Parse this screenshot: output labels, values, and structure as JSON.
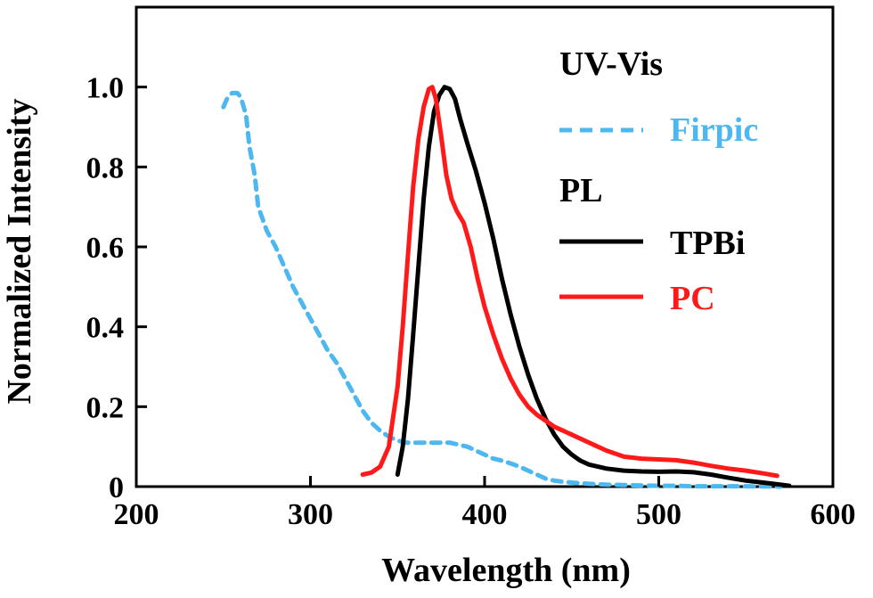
{
  "chart_data": {
    "type": "line",
    "xlabel": "Wavelength (nm)",
    "ylabel": "Normalized Intensity",
    "xlim": [
      200,
      600
    ],
    "ylim": [
      0,
      1.2
    ],
    "x_ticks": [
      200,
      300,
      400,
      500,
      600
    ],
    "y_ticks": [
      0,
      0.2,
      0.4,
      0.6,
      0.8,
      1.0
    ],
    "y_tick_labels": [
      "0",
      "0.2",
      "0.4",
      "0.6",
      "0.8",
      "1.0"
    ],
    "grid": false,
    "legend": {
      "placement": "top-right",
      "groups": [
        {
          "title": "UV-Vis",
          "entries": [
            "Firpic"
          ]
        },
        {
          "title": "PL",
          "entries": [
            "TPBi",
            "PC"
          ]
        }
      ]
    },
    "series": [
      {
        "name": "Firpic",
        "group": "UV-Vis",
        "color": "#4DB8F0",
        "style": "dashed",
        "x": [
          250,
          252,
          255,
          258,
          260,
          263,
          265,
          268,
          270,
          275,
          280,
          285,
          290,
          295,
          300,
          305,
          310,
          315,
          320,
          325,
          330,
          335,
          340,
          345,
          350,
          355,
          360,
          365,
          370,
          375,
          380,
          385,
          390,
          395,
          400,
          405,
          410,
          415,
          420,
          425,
          430,
          435,
          440,
          445,
          450,
          460,
          470,
          480,
          490,
          500,
          510,
          520,
          530,
          540,
          550,
          560,
          570
        ],
        "y": [
          0.95,
          0.97,
          0.985,
          0.985,
          0.975,
          0.93,
          0.85,
          0.78,
          0.7,
          0.64,
          0.6,
          0.55,
          0.5,
          0.46,
          0.42,
          0.38,
          0.34,
          0.31,
          0.27,
          0.23,
          0.19,
          0.16,
          0.14,
          0.125,
          0.115,
          0.11,
          0.11,
          0.11,
          0.11,
          0.11,
          0.11,
          0.105,
          0.1,
          0.09,
          0.08,
          0.07,
          0.065,
          0.058,
          0.05,
          0.04,
          0.03,
          0.02,
          0.015,
          0.012,
          0.01,
          0.007,
          0.005,
          0.004,
          0.003,
          0.002,
          0.002,
          0.001,
          0.001,
          0.001,
          0.001,
          0.0005,
          0
        ]
      },
      {
        "name": "TPBi",
        "group": "PL",
        "color": "#000000",
        "style": "solid",
        "x": [
          350,
          353,
          356,
          359,
          362,
          365,
          368,
          371,
          374,
          377,
          380,
          383,
          386,
          390,
          395,
          400,
          405,
          410,
          415,
          420,
          425,
          430,
          435,
          440,
          445,
          450,
          455,
          460,
          470,
          480,
          490,
          500,
          510,
          520,
          530,
          540,
          550,
          560,
          570,
          575
        ],
        "y": [
          0.03,
          0.1,
          0.22,
          0.38,
          0.55,
          0.72,
          0.85,
          0.94,
          0.98,
          1.0,
          0.995,
          0.97,
          0.92,
          0.86,
          0.79,
          0.71,
          0.62,
          0.52,
          0.43,
          0.35,
          0.28,
          0.22,
          0.17,
          0.13,
          0.1,
          0.08,
          0.065,
          0.055,
          0.045,
          0.04,
          0.038,
          0.037,
          0.038,
          0.036,
          0.03,
          0.022,
          0.015,
          0.01,
          0.005,
          0.002
        ]
      },
      {
        "name": "PC",
        "group": "PL",
        "color": "#FF1A1A",
        "style": "solid",
        "x": [
          330,
          335,
          340,
          345,
          350,
          353,
          356,
          359,
          362,
          365,
          368,
          370,
          372,
          375,
          378,
          381,
          384,
          388,
          392,
          396,
          400,
          405,
          410,
          415,
          420,
          425,
          430,
          435,
          440,
          445,
          450,
          455,
          460,
          465,
          470,
          480,
          490,
          500,
          510,
          520,
          530,
          540,
          550,
          560,
          568
        ],
        "y": [
          0.03,
          0.035,
          0.05,
          0.1,
          0.25,
          0.4,
          0.58,
          0.75,
          0.87,
          0.95,
          0.995,
          1.0,
          0.97,
          0.88,
          0.78,
          0.72,
          0.69,
          0.66,
          0.6,
          0.52,
          0.45,
          0.38,
          0.32,
          0.27,
          0.23,
          0.2,
          0.18,
          0.165,
          0.15,
          0.14,
          0.13,
          0.12,
          0.11,
          0.1,
          0.09,
          0.075,
          0.07,
          0.068,
          0.066,
          0.06,
          0.052,
          0.045,
          0.04,
          0.033,
          0.027
        ]
      }
    ]
  }
}
